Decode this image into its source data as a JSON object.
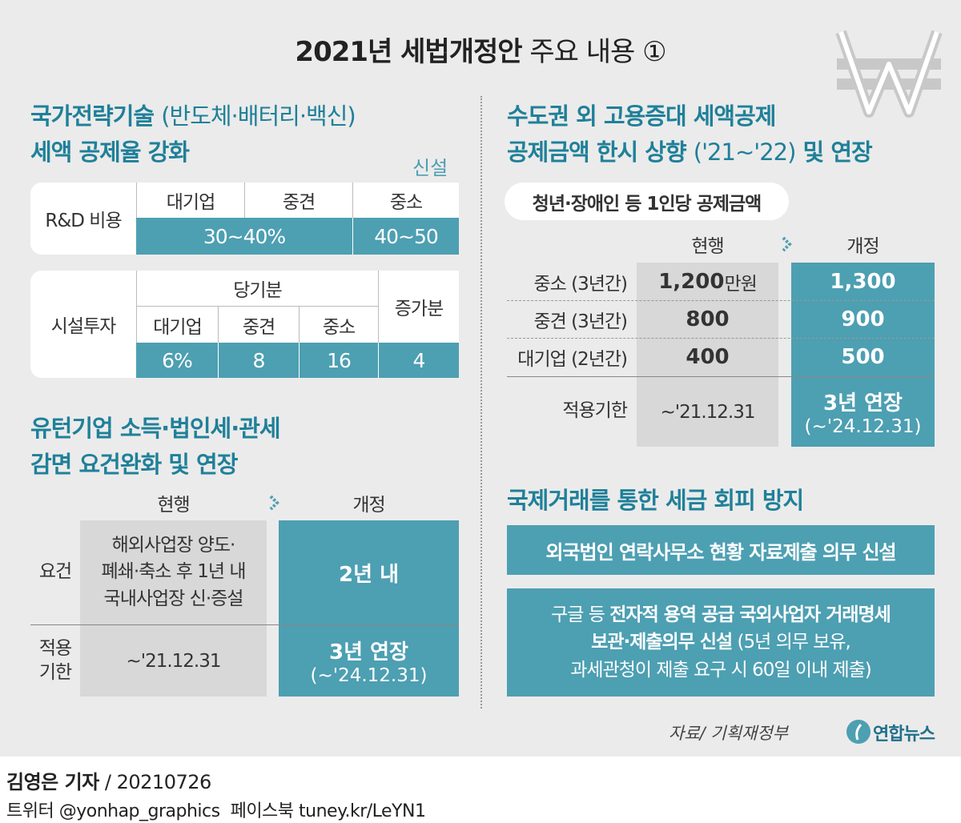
{
  "title": {
    "main": "2021년 세법개정안",
    "sub": "주요 내용 ①"
  },
  "strategic_tech": {
    "title_bold": "국가전략기술",
    "title_paren": "(반도체·배터리·백신)",
    "title_line2": "세액 공제율 강화",
    "tag": "신설",
    "rd": {
      "label": "R&D 비용",
      "headers": [
        "대기업",
        "중견",
        "중소"
      ],
      "values": [
        "30~40%",
        "40~50"
      ]
    },
    "facility": {
      "label": "시설투자",
      "group": "당기분",
      "headers": [
        "대기업",
        "중견",
        "중소"
      ],
      "increase": "증가분",
      "values": [
        "6%",
        "8",
        "16",
        "4"
      ]
    }
  },
  "reshoring": {
    "title_lines": [
      "유턴기업 소득·법인세·관세",
      "감면 요건완화 및 연장"
    ],
    "headers": [
      "현행",
      "개정"
    ],
    "rows": [
      {
        "label": "요건",
        "current": "해외사업장 양도·\n폐쇄·축소 후 1년 내\n국내사업장 신·증설",
        "revised": "2년 내"
      },
      {
        "label": "적용\n기한",
        "current": "~'21.12.31",
        "revised": "3년 연장",
        "revised_sub": "(~'24.12.31)"
      }
    ]
  },
  "employment": {
    "title_line1": "수도권 외 고용증대 세액공제",
    "title_bold": "공제금액 한시 상향",
    "title_paren": "('21~'22)",
    "title_end": "및 연장",
    "pill": "청년·장애인 등 1인당 공제금액",
    "headers": [
      "현행",
      "개정"
    ],
    "rows": [
      {
        "label": "중소 (3년간)",
        "current": "1,200",
        "current_unit": "만원",
        "revised": "1,300"
      },
      {
        "label": "중견 (3년간)",
        "current": "800",
        "revised": "900"
      },
      {
        "label": "대기업 (2년간)",
        "current": "400",
        "revised": "500"
      },
      {
        "label": "적용기한",
        "current": "~'21.12.31",
        "revised": "3년 연장",
        "revised_sub": "(~'24.12.31)"
      }
    ]
  },
  "international": {
    "title": "국제거래를 통한 세금 회피 방지",
    "item1": "외국법인 연락사무소 현황 자료제출 의무 신설",
    "item2": {
      "l1_plain": "구글 등",
      "l1_bold": "전자적 용역 공급 국외사업자 거래명세",
      "l2_bold": "보관·제출의무 신설",
      "l2_plain": "(5년 의무 보유,",
      "l3": "과세관청이 제출 요구 시 60일 이내 제출)"
    }
  },
  "footer": {
    "source": "자료/ 기획재정부",
    "logo": "연합뉴스",
    "reporter": "김영은 기자",
    "date": "/ 20210726",
    "social": "트위터 @yonhap_graphics  페이스북 tuney.kr/LeYN1"
  }
}
